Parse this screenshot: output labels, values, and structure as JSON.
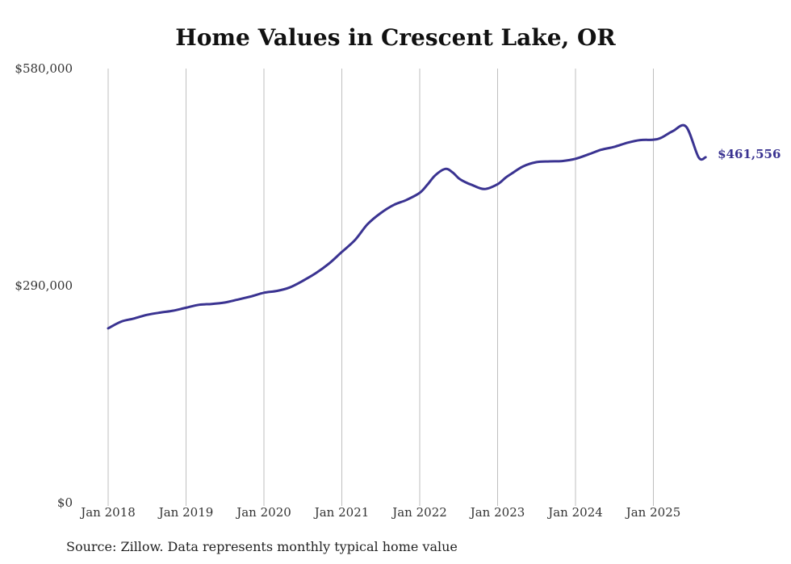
{
  "colors": {
    "line": "#3a3391",
    "grid": "#bfbfbf",
    "text": "#333333"
  },
  "chart_data": {
    "type": "line",
    "title": "Home Values in Crescent Lake, OR",
    "xlabel": "",
    "ylabel": "",
    "ylim": [
      0,
      580000
    ],
    "xlim": [
      2018.0,
      2025.75
    ],
    "y_ticks": [
      {
        "value": 0,
        "label": "$0"
      },
      {
        "value": 290000,
        "label": "$290,000"
      },
      {
        "value": 580000,
        "label": "$580,000"
      }
    ],
    "x_ticks": [
      {
        "value": 2018,
        "label": "Jan 2018"
      },
      {
        "value": 2019,
        "label": "Jan 2019"
      },
      {
        "value": 2020,
        "label": "Jan 2020"
      },
      {
        "value": 2021,
        "label": "Jan 2021"
      },
      {
        "value": 2022,
        "label": "Jan 2022"
      },
      {
        "value": 2023,
        "label": "Jan 2023"
      },
      {
        "value": 2024,
        "label": "Jan 2024"
      },
      {
        "value": 2025,
        "label": "Jan 2025"
      }
    ],
    "grid": "vertical",
    "series": [
      {
        "name": "Typical home value",
        "x": [
          2018.0,
          2018.17,
          2018.33,
          2018.5,
          2018.67,
          2018.83,
          2019.0,
          2019.17,
          2019.33,
          2019.5,
          2019.67,
          2019.83,
          2020.0,
          2020.17,
          2020.33,
          2020.5,
          2020.67,
          2020.83,
          2021.0,
          2021.17,
          2021.33,
          2021.5,
          2021.67,
          2021.83,
          2022.0,
          2022.1,
          2022.2,
          2022.33,
          2022.42,
          2022.5,
          2022.58,
          2022.67,
          2022.83,
          2023.0,
          2023.1,
          2023.17,
          2023.33,
          2023.5,
          2023.67,
          2023.83,
          2024.0,
          2024.17,
          2024.33,
          2024.5,
          2024.67,
          2024.83,
          2025.0,
          2025.1,
          2025.25,
          2025.42,
          2025.58,
          2025.67
        ],
        "values": [
          233000,
          242000,
          246000,
          251000,
          254000,
          256500,
          260500,
          264500,
          265500,
          267500,
          271500,
          275500,
          280500,
          283000,
          287500,
          296500,
          307000,
          319000,
          335000,
          351000,
          372000,
          387000,
          398000,
          404500,
          414000,
          425000,
          437500,
          446000,
          441500,
          433500,
          428500,
          424500,
          419000,
          425500,
          434000,
          439000,
          449500,
          455000,
          456000,
          456500,
          459500,
          465500,
          471500,
          475500,
          481000,
          484500,
          485000,
          487500,
          496500,
          502500,
          461556,
          461556
        ],
        "end_label": "$461,556"
      }
    ]
  },
  "source": "Source: Zillow. Data represents monthly typical home value"
}
